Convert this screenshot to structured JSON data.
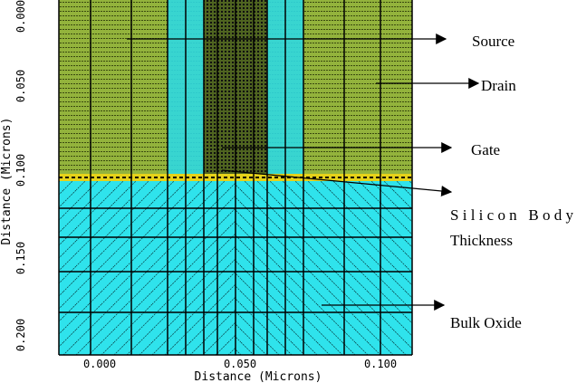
{
  "plot": {
    "x_axis": {
      "label": "Distance (Microns)",
      "ticks": [
        "0.000",
        "0.050",
        "0.100"
      ]
    },
    "y_axis": {
      "label": "Distance (Microns)",
      "ticks": [
        "0.000",
        "0.050",
        "0.100",
        "0.150",
        "0.200"
      ]
    }
  },
  "annotations": {
    "source": "Source",
    "drain": "Drain",
    "gate": "Gate",
    "silicon_body_line1": "Silicon Body",
    "silicon_body_line2": "Thickness",
    "bulk_oxide": "Bulk Oxide"
  }
}
